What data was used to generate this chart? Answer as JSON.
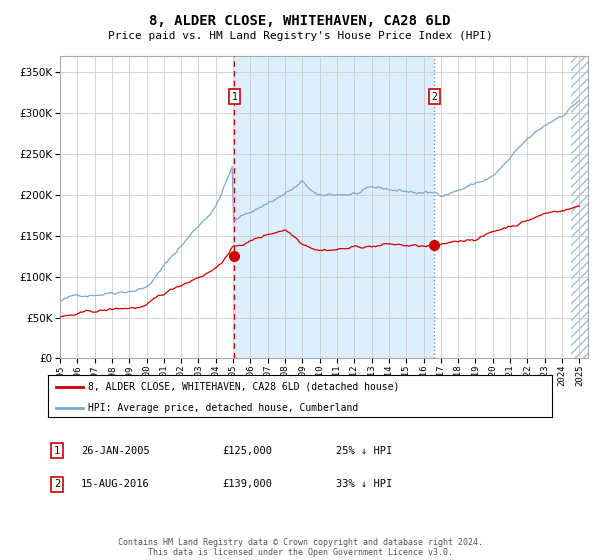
{
  "title": "8, ALDER CLOSE, WHITEHAVEN, CA28 6LD",
  "subtitle": "Price paid vs. HM Land Registry's House Price Index (HPI)",
  "legend_line1": "8, ALDER CLOSE, WHITEHAVEN, CA28 6LD (detached house)",
  "legend_line2": "HPI: Average price, detached house, Cumberland",
  "transaction1_label": "1",
  "transaction1_date": "26-JAN-2005",
  "transaction1_price": "£125,000",
  "transaction1_hpi": "25% ↓ HPI",
  "transaction2_label": "2",
  "transaction2_date": "15-AUG-2016",
  "transaction2_price": "£139,000",
  "transaction2_hpi": "33% ↓ HPI",
  "footer": "Contains HM Land Registry data © Crown copyright and database right 2024.\nThis data is licensed under the Open Government Licence v3.0.",
  "red_color": "#cc0000",
  "blue_color": "#7aaacc",
  "background_color": "#ddeeff",
  "hatch_color": "#aabbcc",
  "grid_color": "#cccccc",
  "ylim": [
    0,
    370000
  ],
  "yticks": [
    0,
    50000,
    100000,
    150000,
    200000,
    250000,
    300000,
    350000
  ],
  "x_start_year": 1995,
  "x_end_year": 2025,
  "transaction1_year": 2005.07,
  "transaction2_year": 2016.62,
  "t1_price": 125000,
  "t2_price": 139000
}
